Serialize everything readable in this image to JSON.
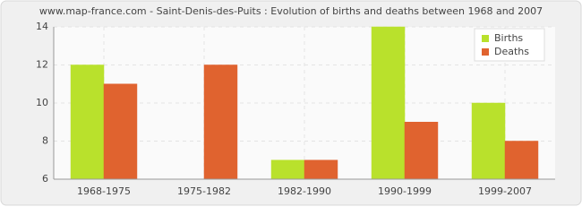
{
  "chart_data": {
    "type": "bar",
    "title": "www.map-france.com - Saint-Denis-des-Puits : Evolution of births and deaths between 1968 and 2007",
    "categories": [
      "1968-1975",
      "1975-1982",
      "1982-1990",
      "1990-1999",
      "1999-2007"
    ],
    "series": [
      {
        "name": "Births",
        "color": "#b9e12c",
        "values": [
          12,
          6,
          7,
          14,
          10
        ]
      },
      {
        "name": "Deaths",
        "color": "#e0632f",
        "values": [
          11,
          12,
          7,
          9,
          8
        ]
      }
    ],
    "ylim": [
      6,
      14
    ],
    "yticks": [
      6,
      8,
      10,
      12,
      14
    ],
    "grid": true,
    "legend": "top-right"
  }
}
